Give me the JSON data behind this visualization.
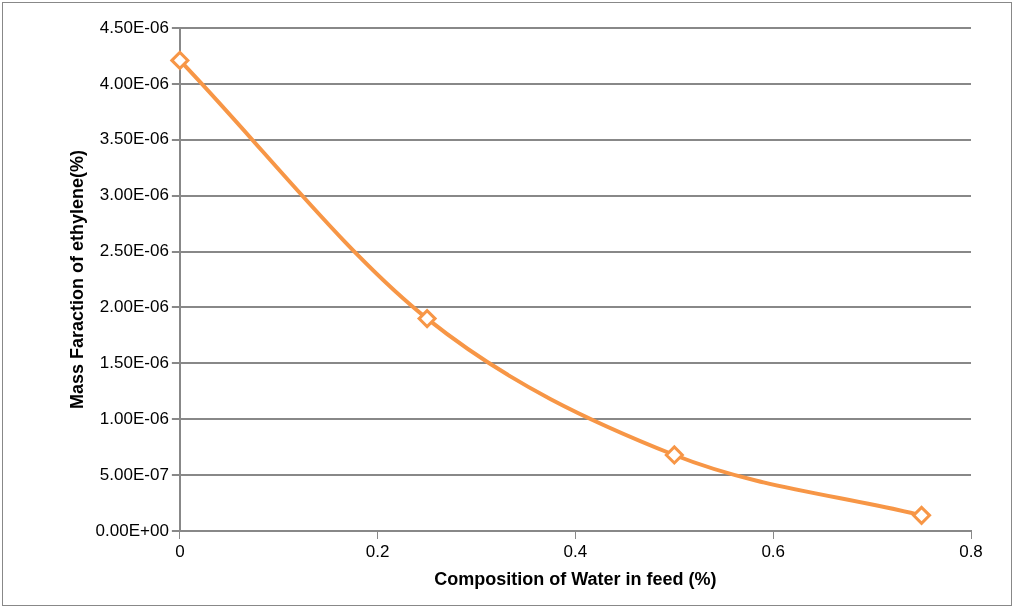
{
  "chart_data": {
    "type": "line",
    "xlabel": "Composition of Water in feed (%)",
    "ylabel": "Mass Faraction of ethylene(%)",
    "x": [
      0,
      0.25,
      0.5,
      0.75
    ],
    "series": [
      {
        "color": "#f79646",
        "values": [
          4.21e-06,
          1.9e-06,
          6.8e-07,
          1.4e-07
        ]
      }
    ],
    "xlim": [
      0,
      0.8
    ],
    "xticks": [
      0,
      0.2,
      0.4,
      0.6,
      0.8
    ],
    "ylim": [
      0,
      4.5e-06
    ],
    "yticks": [
      {
        "value": 0,
        "label": "0.00E+00"
      },
      {
        "value": 5e-07,
        "label": "5.00E-07"
      },
      {
        "value": 1e-06,
        "label": "1.00E-06"
      },
      {
        "value": 1.5e-06,
        "label": "1.50E-06"
      },
      {
        "value": 2e-06,
        "label": "2.00E-06"
      },
      {
        "value": 2.5e-06,
        "label": "2.50E-06"
      },
      {
        "value": 3e-06,
        "label": "3.00E-06"
      },
      {
        "value": 3.5e-06,
        "label": "3.50E-06"
      },
      {
        "value": 4e-06,
        "label": "4.00E-06"
      },
      {
        "value": 4.5e-06,
        "label": "4.50E-06"
      }
    ],
    "grid": "y",
    "legend": false,
    "marker": "diamond",
    "line_style": "solid"
  }
}
